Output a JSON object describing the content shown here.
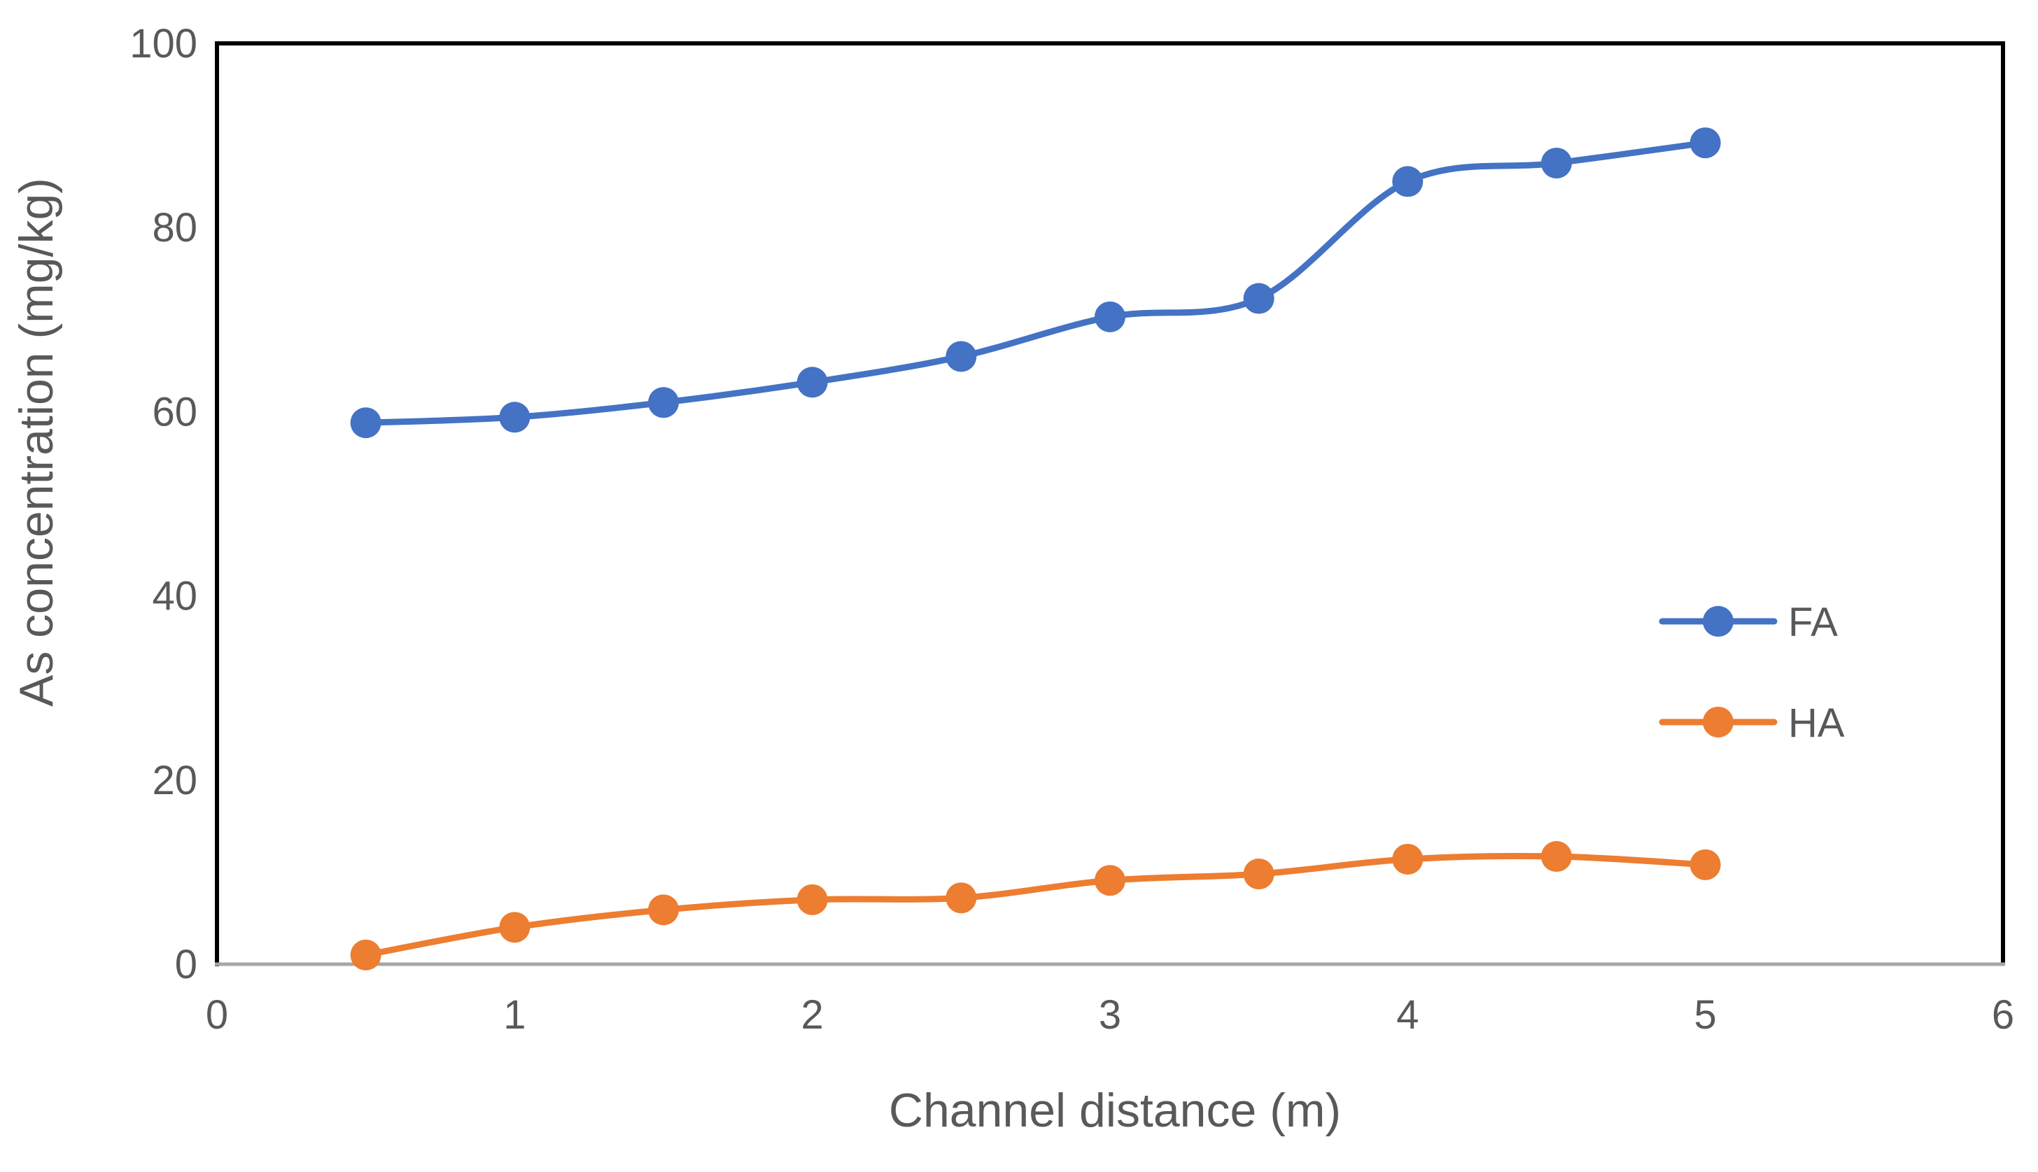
{
  "chart_data": {
    "type": "line",
    "title": "",
    "xlabel": "Channel distance (m)",
    "ylabel": "As concentration (mg/kg)",
    "xlim": [
      0,
      6
    ],
    "ylim": [
      0,
      100
    ],
    "xticks": [
      0,
      1,
      2,
      3,
      4,
      5,
      6
    ],
    "yticks": [
      0,
      20,
      40,
      60,
      80,
      100
    ],
    "xtick_labels": [
      "0",
      "1",
      "2",
      "3",
      "4",
      "5",
      "6"
    ],
    "ytick_labels": [
      "0",
      "20",
      "40",
      "60",
      "80",
      "100"
    ],
    "grid": false,
    "smooth": true,
    "markers": true,
    "legend_position": "right",
    "x": [
      0.5,
      1,
      1.5,
      2,
      2.5,
      3,
      3.5,
      4,
      4.5,
      5
    ],
    "series": [
      {
        "name": "FA",
        "color": "#4472c4",
        "values": [
          58.8,
          59.4,
          61.0,
          63.2,
          66.0,
          70.3,
          72.3,
          85.0,
          87.0,
          89.2
        ]
      },
      {
        "name": "HA",
        "color": "#ed7d31",
        "values": [
          1.0,
          4.0,
          5.9,
          7.0,
          7.2,
          9.1,
          9.8,
          11.4,
          11.7,
          10.8
        ]
      }
    ]
  }
}
